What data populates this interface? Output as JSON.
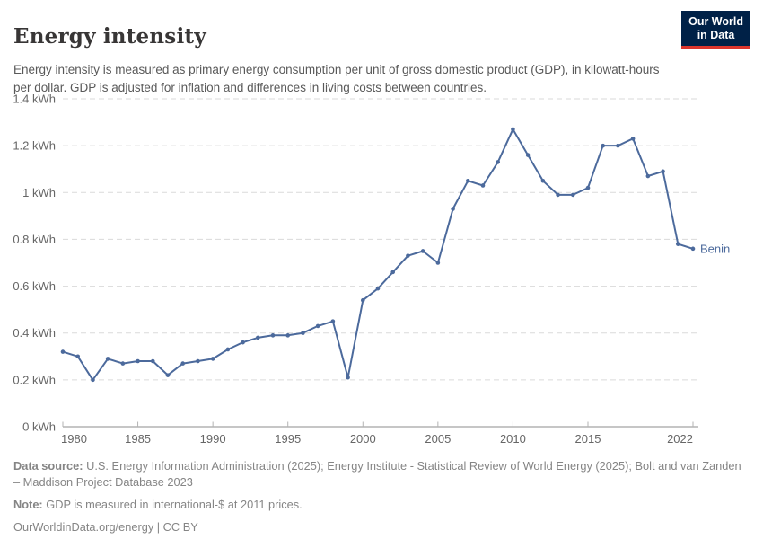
{
  "header": {
    "title": "Energy intensity",
    "subtitle": "Energy intensity is measured as primary energy consumption per unit of gross domestic product (GDP), in kilowatt-hours per dollar. GDP is adjusted for inflation and differences in living costs between countries.",
    "logo": {
      "line1": "Our World",
      "line2": "in Data",
      "bg_color": "#002147",
      "accent_color": "#dc352c"
    }
  },
  "chart_data": {
    "type": "line",
    "title": "Energy intensity",
    "unit": "kWh",
    "xlabel": "",
    "ylabel": "",
    "ylim": [
      0,
      1.4
    ],
    "yticks": [
      0,
      0.2,
      0.4,
      0.6,
      0.8,
      1,
      1.2,
      1.4
    ],
    "ytick_labels": [
      "0 kWh",
      "0.2 kWh",
      "0.4 kWh",
      "0.6 kWh",
      "0.8 kWh",
      "1 kWh",
      "1.2 kWh",
      "1.4 kWh"
    ],
    "xticks": [
      1980,
      1985,
      1990,
      1995,
      2000,
      2005,
      2010,
      2015,
      2022
    ],
    "xlim": [
      1980,
      2022
    ],
    "grid": "horizontal-dashed",
    "legend_position": "end-of-line-label",
    "series": [
      {
        "name": "Benin",
        "color": "#4c6a9c",
        "x": [
          1980,
          1981,
          1982,
          1983,
          1984,
          1985,
          1986,
          1987,
          1988,
          1989,
          1990,
          1991,
          1992,
          1993,
          1994,
          1995,
          1996,
          1997,
          1998,
          1999,
          2000,
          2001,
          2002,
          2003,
          2004,
          2005,
          2006,
          2007,
          2008,
          2009,
          2010,
          2011,
          2012,
          2013,
          2014,
          2015,
          2016,
          2017,
          2018,
          2019,
          2020,
          2021,
          2022
        ],
        "values": [
          0.32,
          0.3,
          0.2,
          0.29,
          0.27,
          0.28,
          0.28,
          0.22,
          0.27,
          0.28,
          0.29,
          0.33,
          0.36,
          0.38,
          0.39,
          0.39,
          0.4,
          0.43,
          0.45,
          0.21,
          0.54,
          0.59,
          0.66,
          0.73,
          0.75,
          0.7,
          0.93,
          1.05,
          1.03,
          1.13,
          1.27,
          1.16,
          1.05,
          0.99,
          0.99,
          1.02,
          1.2,
          1.2,
          1.23,
          1.07,
          1.09,
          0.78,
          0.76
        ]
      }
    ]
  },
  "footer": {
    "data_source_label": "Data source:",
    "data_source_text": " U.S. Energy Information Administration (2025); Energy Institute - Statistical Review of World Energy (2025); Bolt and van Zanden – Maddison Project Database 2023",
    "note_label": "Note:",
    "note_text": " GDP is measured in international-$ at 2011 prices.",
    "license": "OurWorldinData.org/energy | CC BY"
  }
}
